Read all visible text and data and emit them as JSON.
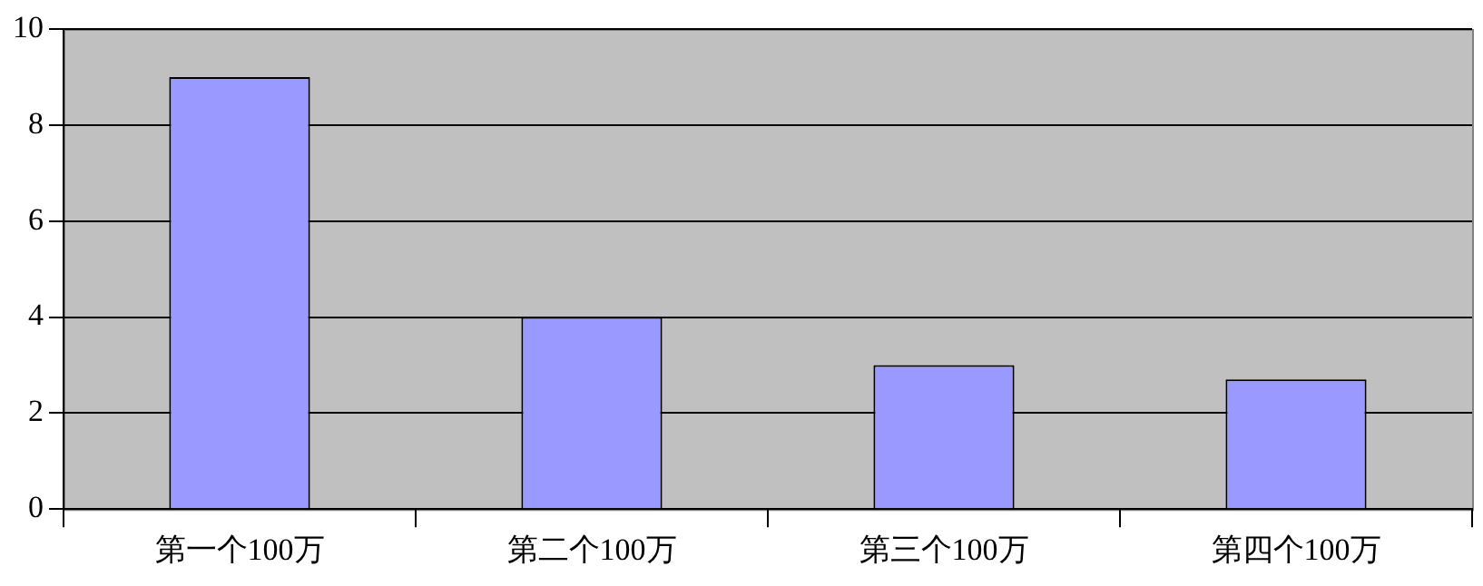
{
  "chart_data": {
    "type": "bar",
    "categories": [
      "第一个100万",
      "第二个100万",
      "第三个100万",
      "第四个100万"
    ],
    "values": [
      9,
      4,
      3,
      2.7
    ],
    "color": "#9999ff",
    "ylim": [
      0,
      10
    ],
    "yticks": [
      0,
      2,
      4,
      6,
      8,
      10
    ],
    "grid": "y",
    "legend": false
  }
}
